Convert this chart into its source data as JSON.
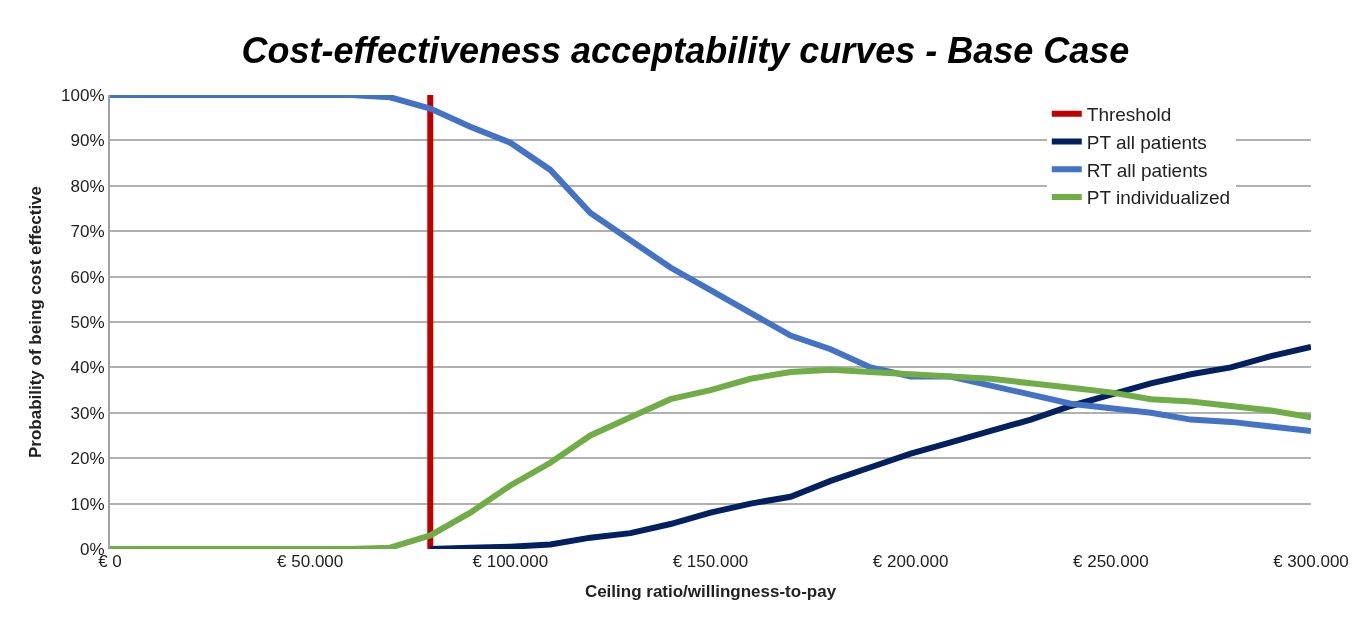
{
  "chart_data": {
    "type": "line",
    "title": "Cost-effectiveness acceptability curves - Base Case",
    "xlabel": "Ceiling ratio/willingness-to-pay",
    "ylabel": "Probability of being cost effective",
    "x": [
      0,
      10000,
      20000,
      30000,
      40000,
      50000,
      60000,
      70000,
      80000,
      90000,
      100000,
      110000,
      120000,
      130000,
      140000,
      150000,
      160000,
      170000,
      180000,
      190000,
      200000,
      210000,
      220000,
      230000,
      240000,
      250000,
      260000,
      270000,
      280000,
      290000,
      300000
    ],
    "series": [
      {
        "name": "Threshold",
        "color": "#c00000",
        "x": [
          80000,
          80000
        ],
        "values": [
          0,
          100
        ]
      },
      {
        "name": "PT all patients",
        "color": "#002060",
        "values": [
          null,
          null,
          null,
          null,
          null,
          null,
          null,
          null,
          0,
          0.3,
          0.5,
          1,
          2.5,
          3.5,
          5.5,
          8,
          10,
          11.5,
          15,
          18,
          21,
          23.5,
          26,
          28.5,
          31.5,
          34,
          36.5,
          38.5,
          40,
          42.5,
          44.5
        ]
      },
      {
        "name": "RT all patients",
        "color": "#4472c4",
        "values": [
          100,
          100,
          100,
          100,
          100,
          100,
          100,
          99.5,
          97,
          93,
          89.5,
          83.5,
          74,
          68,
          62,
          57,
          52,
          47,
          44,
          40,
          38,
          38,
          36,
          34,
          32,
          31,
          30,
          28.5,
          28,
          27,
          26
        ]
      },
      {
        "name": "PT individualized",
        "color": "#70ad47",
        "values": [
          0,
          0,
          0,
          0,
          0,
          0,
          0,
          0.3,
          3,
          8,
          14,
          19,
          25,
          29,
          33,
          35,
          37.5,
          39,
          39.5,
          39,
          38.5,
          38,
          37.5,
          36.5,
          35.5,
          34.5,
          33,
          32.5,
          31.5,
          30.5,
          29
        ]
      }
    ],
    "xlim": [
      0,
      300000
    ],
    "xticks": [
      {
        "value": 0,
        "label": "€ 0"
      },
      {
        "value": 50000,
        "label": "€ 50.000"
      },
      {
        "value": 100000,
        "label": "€ 100.000"
      },
      {
        "value": 150000,
        "label": "€ 150.000"
      },
      {
        "value": 200000,
        "label": "€ 200.000"
      },
      {
        "value": 250000,
        "label": "€ 250.000"
      },
      {
        "value": 300000,
        "label": "€ 300.000"
      }
    ],
    "ylim": [
      0,
      100
    ],
    "yticks": [
      {
        "value": 0,
        "label": "0%"
      },
      {
        "value": 10,
        "label": "10%"
      },
      {
        "value": 20,
        "label": "20%"
      },
      {
        "value": 30,
        "label": "30%"
      },
      {
        "value": 40,
        "label": "40%"
      },
      {
        "value": 50,
        "label": "50%"
      },
      {
        "value": 60,
        "label": "60%"
      },
      {
        "value": 70,
        "label": "70%"
      },
      {
        "value": 80,
        "label": "80%"
      },
      {
        "value": 90,
        "label": "90%"
      },
      {
        "value": 100,
        "label": "100%"
      }
    ],
    "grid": "y",
    "legend": "top right",
    "marker": "none",
    "line_style": "solid"
  }
}
